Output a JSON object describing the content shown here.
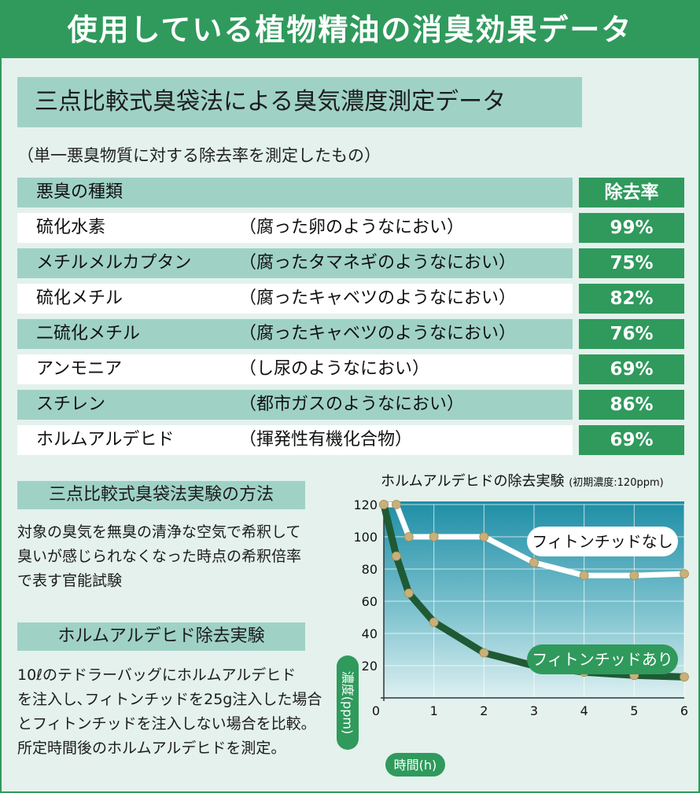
{
  "title": "使用している植物精油の消臭効果データ",
  "subtitle": "三点比較式臭袋法による臭気濃度測定データ",
  "note": "（単一悪臭物質に対する除去率を測定したもの）",
  "table": {
    "header_type": "悪臭の種類",
    "header_rate": "除去率",
    "rows": [
      {
        "name": "硫化水素",
        "desc": "（腐った卵のようなにおい）",
        "rate": "99%"
      },
      {
        "name": "メチルメルカプタン",
        "desc": "（腐ったタマネギのようなにおい）",
        "rate": "75%"
      },
      {
        "name": "硫化メチル",
        "desc": "（腐ったキャベツのようなにおい）",
        "rate": "82%"
      },
      {
        "name": "二硫化メチル",
        "desc": "（腐ったキャベツのようなにおい）",
        "rate": "76%"
      },
      {
        "name": "アンモニア",
        "desc": "（し尿のようなにおい）",
        "rate": "69%"
      },
      {
        "name": "スチレン",
        "desc": "（都市ガスのようなにおい）",
        "rate": "86%"
      },
      {
        "name": "ホルムアルデヒド",
        "desc": "（揮発性有機化合物）",
        "rate": "69%"
      }
    ]
  },
  "method": {
    "label": "三点比較式臭袋法実験の方法",
    "lines": [
      "対象の臭気を無臭の清浄な空気で希釈して",
      "臭いが感じられなくなった時点の希釈倍率",
      "で表す官能試験"
    ]
  },
  "formaldehyde": {
    "label": "ホルムアルデヒド除去実験",
    "lines": [
      "10ℓのテドラーバッグにホルムアルデヒド",
      "を注入し､フィトンチッドを25g注入した場合",
      "とフィトンチッドを注入しない場合を比較。",
      "所定時間後のホルムアルデヒドを測定。"
    ]
  },
  "colors": {
    "green": "#2f9a5c",
    "light_teal": "#9fd2c5",
    "dark_line": "#1f5a34",
    "marker": "#c9b07a",
    "plot_top": "#1e8ea6",
    "plot_bottom": "#dff0f2"
  },
  "chart_data": {
    "type": "line",
    "title": "ホルムアルデヒドの除去実験",
    "title_note": "(初期濃度:120ppm)",
    "xlabel": "時間(h)",
    "ylabel": "濃度(ppm)",
    "xlim": [
      0,
      6
    ],
    "ylim": [
      0,
      120
    ],
    "xticks": [
      0,
      1,
      2,
      3,
      4,
      5,
      6
    ],
    "yticks": [
      20,
      40,
      60,
      80,
      100,
      120
    ],
    "grid": true,
    "series": [
      {
        "name": "フィトンチッドなし",
        "x": [
          0,
          0.25,
          0.5,
          1,
          2,
          3,
          4,
          5,
          6
        ],
        "y": [
          120,
          120,
          100,
          100,
          100,
          84,
          76,
          76,
          77
        ]
      },
      {
        "name": "フィトンチッドあり",
        "x": [
          0,
          0.25,
          0.5,
          1,
          2,
          3,
          4,
          5,
          6
        ],
        "y": [
          120,
          88,
          65,
          47,
          28,
          20,
          16,
          14,
          13
        ]
      }
    ]
  }
}
